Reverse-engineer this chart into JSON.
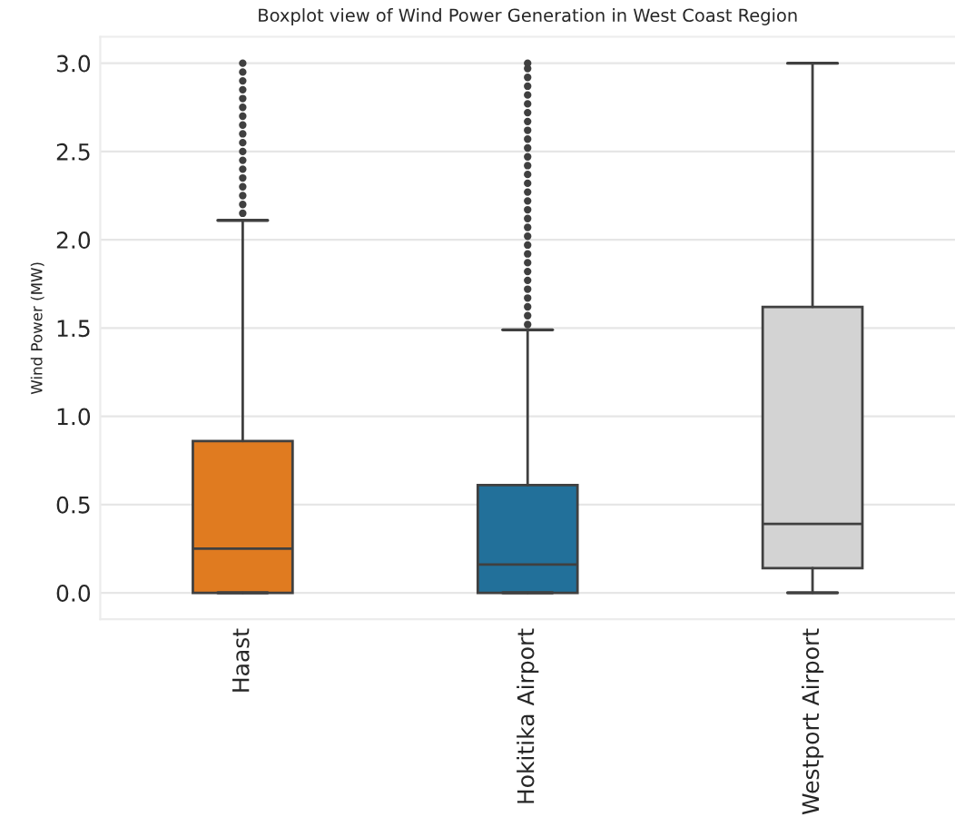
{
  "chart_data": {
    "type": "box",
    "title": "Boxplot view of Wind Power Generation in West Coast Region",
    "ylabel": "Wind Power (MW)",
    "categories": [
      "Haast",
      "Hokitika Airport",
      "Westport Airport"
    ],
    "colors": [
      "#e07b20",
      "#22709a",
      "#d3d3d3"
    ],
    "boxes": [
      {
        "low": 0.0,
        "q1": 0.0,
        "median": 0.25,
        "q3": 0.86,
        "high": 2.11,
        "outliers": [
          2.15,
          2.2,
          2.25,
          2.3,
          2.35,
          2.4,
          2.45,
          2.5,
          2.55,
          2.6,
          2.65,
          2.7,
          2.75,
          2.8,
          2.85,
          2.9,
          2.95,
          3.0
        ]
      },
      {
        "low": 0.0,
        "q1": 0.0,
        "median": 0.16,
        "q3": 0.61,
        "high": 1.49,
        "outliers": [
          1.52,
          1.57,
          1.62,
          1.67,
          1.72,
          1.77,
          1.82,
          1.87,
          1.92,
          1.97,
          2.02,
          2.07,
          2.12,
          2.17,
          2.22,
          2.27,
          2.32,
          2.37,
          2.42,
          2.47,
          2.52,
          2.57,
          2.62,
          2.67,
          2.72,
          2.77,
          2.82,
          2.87,
          2.92,
          2.97,
          3.0
        ]
      },
      {
        "low": 0.0,
        "q1": 0.14,
        "median": 0.39,
        "q3": 1.62,
        "high": 3.0
      }
    ],
    "ylim": [
      -0.15,
      3.15
    ],
    "yticks": [
      {
        "value": 0,
        "label": "0.0"
      },
      {
        "value": 0.5,
        "label": "0.5"
      },
      {
        "value": 1,
        "label": "1.0"
      },
      {
        "value": 1.5,
        "label": "1.5"
      },
      {
        "value": 2,
        "label": "2.0"
      },
      {
        "value": 2.5,
        "label": "2.5"
      },
      {
        "value": 3,
        "label": "3.0"
      }
    ],
    "grid": "y"
  }
}
